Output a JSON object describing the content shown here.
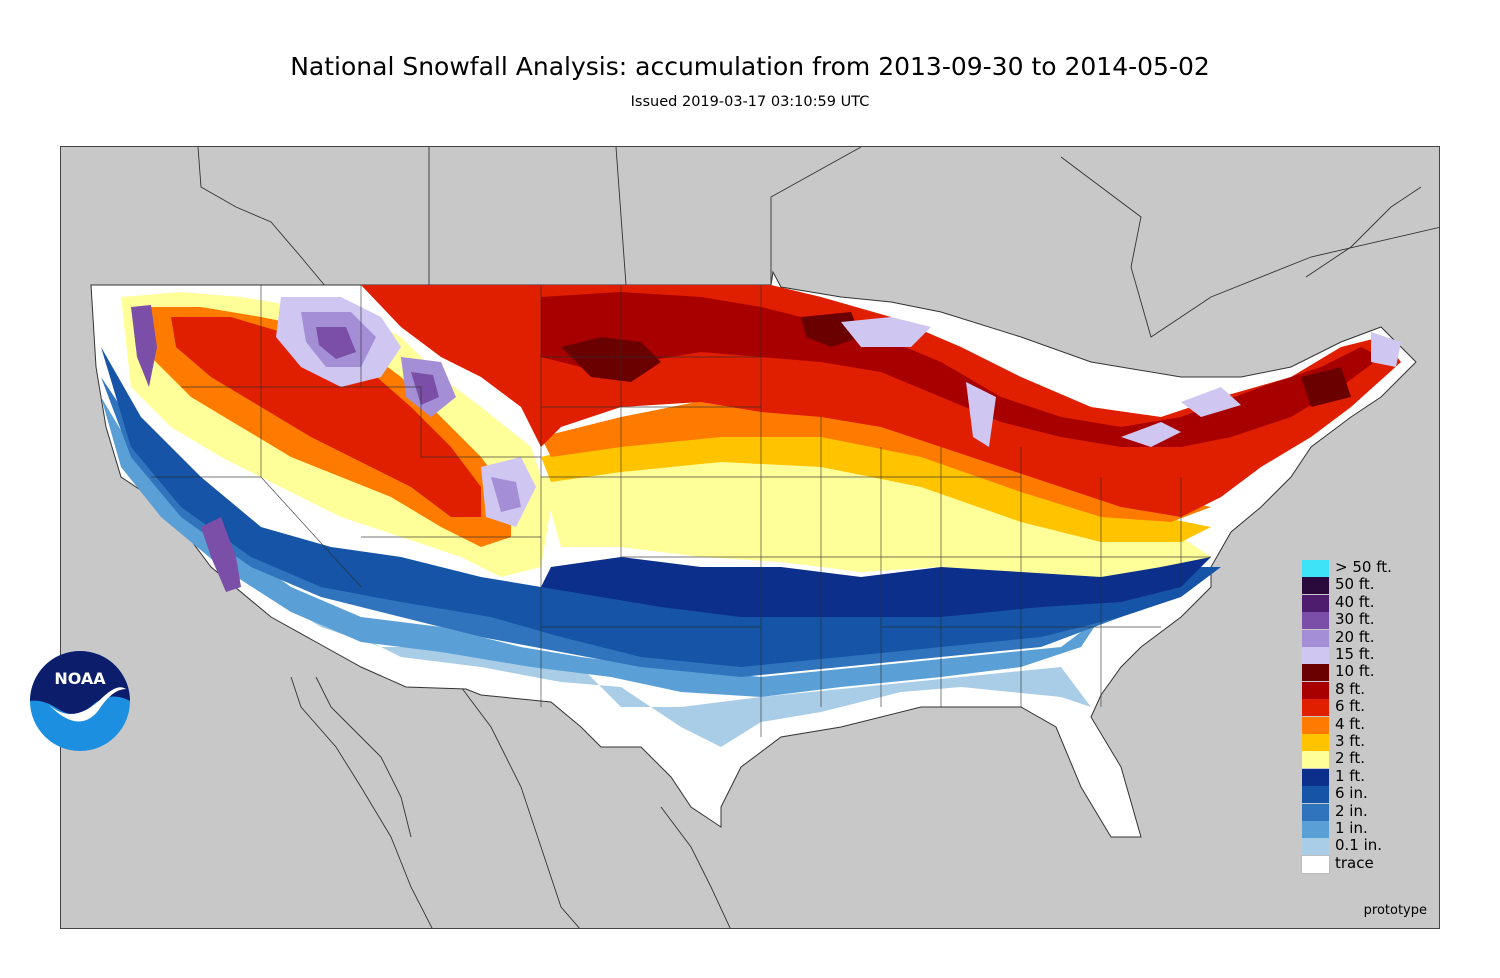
{
  "header": {
    "title": "National Snowfall Analysis: accumulation from 2013-09-30 to 2014-05-02",
    "subtitle": "Issued 2019-03-17 03:10:59 UTC"
  },
  "map": {
    "background_color": "#c8c8c8",
    "watermark": "prototype"
  },
  "logo": {
    "text": "NOAA",
    "icon": "noaa-logo"
  },
  "legend": {
    "items": [
      {
        "label": "> 50 ft.",
        "color": "#3fe3f7"
      },
      {
        "label": "50 ft.",
        "color": "#2a0a3d"
      },
      {
        "label": "40 ft.",
        "color": "#4f1d6e"
      },
      {
        "label": "30 ft.",
        "color": "#7b4fa8"
      },
      {
        "label": "20 ft.",
        "color": "#a48fd6"
      },
      {
        "label": "15 ft.",
        "color": "#cfc6f2"
      },
      {
        "label": "10 ft.",
        "color": "#6b0000"
      },
      {
        "label": "8 ft.",
        "color": "#a80000"
      },
      {
        "label": "6 ft.",
        "color": "#e01e00"
      },
      {
        "label": "4 ft.",
        "color": "#ff7b00"
      },
      {
        "label": "3 ft.",
        "color": "#ffc300"
      },
      {
        "label": "2 ft.",
        "color": "#ffff99"
      },
      {
        "label": "1 ft.",
        "color": "#0c2f8c"
      },
      {
        "label": "6 in.",
        "color": "#1554a6"
      },
      {
        "label": "2 in.",
        "color": "#2f74bd"
      },
      {
        "label": "1 in.",
        "color": "#5aa0d6"
      },
      {
        "label": "0.1 in.",
        "color": "#a9cde6"
      },
      {
        "label": "trace",
        "color": "#ffffff"
      }
    ]
  }
}
